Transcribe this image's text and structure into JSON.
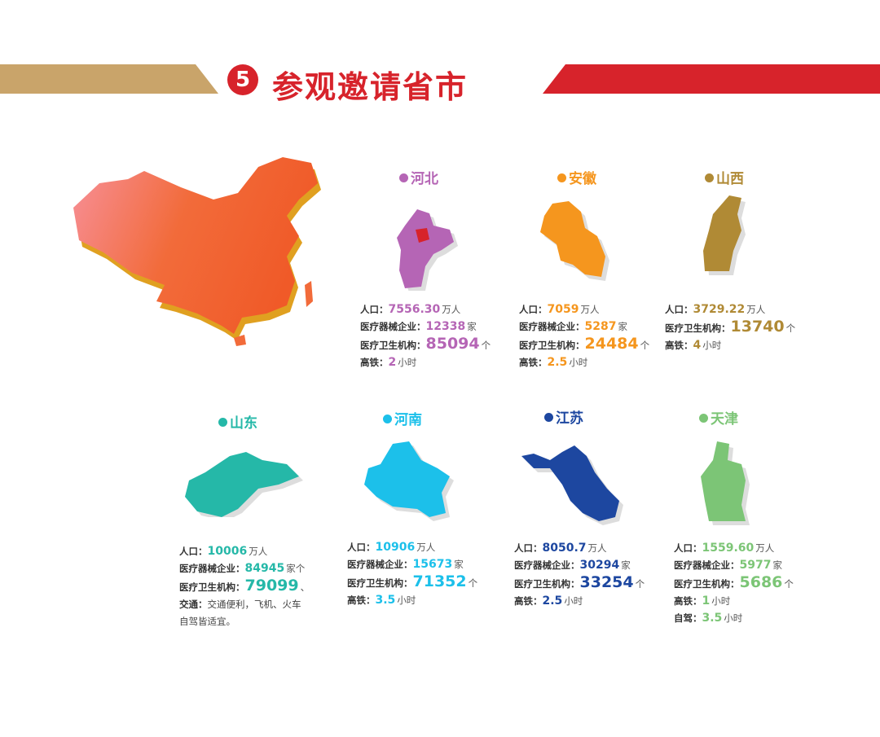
{
  "header": {
    "number": "5",
    "title": "参观邀请省市",
    "colors": {
      "gold": "#c9a46a",
      "red": "#d7232b"
    }
  },
  "china_map": {
    "icon": "china-3d-map",
    "color": "#f26b3a"
  },
  "provinces": [
    {
      "name": "河北",
      "color": "#b565b5",
      "rows": [
        {
          "label": "人口：",
          "value": "7556.30",
          "unit": "万人"
        },
        {
          "label": "医疗器械企业：",
          "value": "12338",
          "unit": "家"
        },
        {
          "label": "医疗卫生机构：",
          "value": "85094",
          "unit": "个"
        },
        {
          "label": "高铁：",
          "value": "2",
          "unit": "小时"
        }
      ]
    },
    {
      "name": "安徽",
      "color": "#f5961e",
      "rows": [
        {
          "label": "人口：",
          "value": "7059",
          "unit": "万人"
        },
        {
          "label": "医疗器械企业：",
          "value": "5287",
          "unit": "家"
        },
        {
          "label": "医疗卫生机构：",
          "value": "24484",
          "unit": "个"
        },
        {
          "label": "高铁：",
          "value": "2.5",
          "unit": "小时"
        }
      ]
    },
    {
      "name": "山西",
      "color": "#b08a35",
      "rows": [
        {
          "label": "人口：",
          "value": "3729.22",
          "unit": "万人"
        },
        {
          "label": "医疗卫生机构：",
          "value": "13740",
          "unit": "个"
        },
        {
          "label": "高铁：",
          "value": "4",
          "unit": "小时"
        }
      ]
    },
    {
      "name": "山东",
      "color": "#25b8a8",
      "rows": [
        {
          "label": "人口：",
          "value": "10006",
          "unit": "万人"
        },
        {
          "label": "医疗器械企业：",
          "value": "84945",
          "unit": "家个"
        },
        {
          "label": "医疗卫生机构：",
          "value": "79099",
          "unit": "、"
        },
        {
          "label": "交通：",
          "text": "交通便利，飞机、火车"
        },
        {
          "text": "自驾皆适宜。"
        }
      ]
    },
    {
      "name": "河南",
      "color": "#1cc0ea",
      "rows": [
        {
          "label": "人口：",
          "value": "10906",
          "unit": "万人"
        },
        {
          "label": "医疗器械企业：",
          "value": "15673",
          "unit": "家"
        },
        {
          "label": "医疗卫生机构：",
          "value": "71352",
          "unit": "个"
        },
        {
          "label": "高铁：",
          "value": "3.5",
          "unit": "小时"
        }
      ]
    },
    {
      "name": "江苏",
      "color": "#1d47a0",
      "rows": [
        {
          "label": "人口：",
          "value": "8050.7",
          "unit": "万人"
        },
        {
          "label": "医疗器械企业：",
          "value": "30294",
          "unit": "家"
        },
        {
          "label": "医疗卫生机构：",
          "value": "33254",
          "unit": "个"
        },
        {
          "label": "高铁：",
          "value": "2.5",
          "unit": "小时"
        }
      ]
    },
    {
      "name": "天津",
      "color": "#7cc576",
      "rows": [
        {
          "label": "人口：",
          "value": "1559.60",
          "unit": "万人"
        },
        {
          "label": "医疗器械企业：",
          "value": "5977",
          "unit": "家"
        },
        {
          "label": "医疗卫生机构：",
          "value": "5686",
          "unit": "个"
        },
        {
          "label": "高铁：",
          "value": "1",
          "unit": "小时"
        },
        {
          "label": "自驾：",
          "value": "3.5",
          "unit": "小时"
        }
      ]
    }
  ]
}
